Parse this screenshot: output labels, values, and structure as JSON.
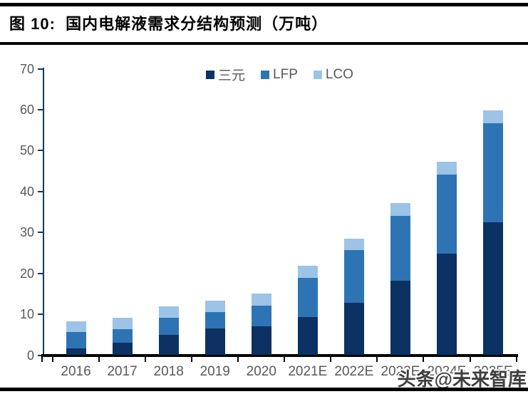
{
  "header": {
    "title": "图 10:  国内电解液需求分结构预测（万吨）"
  },
  "watermark": {
    "text": "头条@未来智库"
  },
  "colors": {
    "series_dark": "#0B3262",
    "series_medium": "#2E74B5",
    "series_light": "#9DC3E6",
    "axis_navy": "#17375E",
    "axis_black": "#000000",
    "label_gray": "#595959"
  },
  "chart_data": {
    "type": "bar",
    "stacked": true,
    "title": "国内电解液需求分结构预测（万吨）",
    "categories": [
      "2016",
      "2017",
      "2018",
      "2019",
      "2020",
      "2021E",
      "2022E",
      "2023E",
      "2024E",
      "2025E"
    ],
    "series": [
      {
        "name": "三元",
        "color": "#0B3262",
        "values": [
          1.6,
          3.0,
          4.9,
          6.5,
          7.1,
          9.4,
          12.8,
          18.2,
          24.8,
          32.4
        ]
      },
      {
        "name": "LFP",
        "color": "#2E74B5",
        "values": [
          4.0,
          3.3,
          4.2,
          4.0,
          5.0,
          9.5,
          12.8,
          15.9,
          19.4,
          24.2
        ]
      },
      {
        "name": "LCO",
        "color": "#9DC3E6",
        "values": [
          2.7,
          2.8,
          2.9,
          2.9,
          2.9,
          3.0,
          2.8,
          3.0,
          3.1,
          3.2
        ]
      }
    ],
    "totals": [
      8.3,
      9.1,
      12.0,
      13.4,
      15.0,
      21.9,
      28.4,
      37.1,
      47.3,
      59.8
    ],
    "xlabel": "",
    "ylabel": "",
    "ylim": [
      0,
      70
    ],
    "yticks": [
      0,
      10,
      20,
      30,
      40,
      50,
      60,
      70
    ],
    "grid": false,
    "legend_position": "top-center"
  }
}
